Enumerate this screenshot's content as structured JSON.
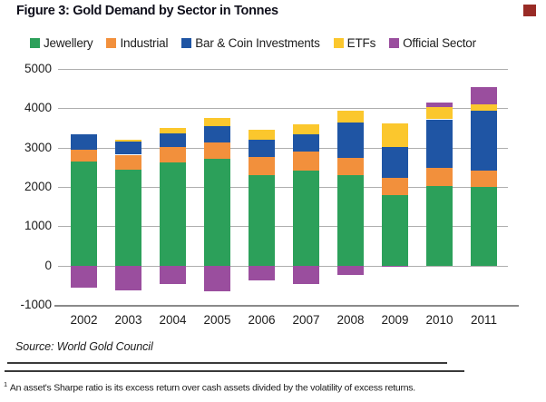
{
  "title": "Figure 3: Gold Demand by Sector in Tonnes",
  "corner_marker": {
    "color": "#992B26"
  },
  "chart_data": {
    "type": "bar",
    "stacked": true,
    "title": "Figure 3: Gold Demand by Sector in Tonnes",
    "categories": [
      "2002",
      "2003",
      "2004",
      "2005",
      "2006",
      "2007",
      "2008",
      "2009",
      "2010",
      "2011"
    ],
    "series": [
      {
        "name": "Jewellery",
        "color": "#2CA05A",
        "values": [
          2650,
          2450,
          2620,
          2710,
          2300,
          2420,
          2300,
          1800,
          2020,
          2000
        ]
      },
      {
        "name": "Industrial",
        "color": "#F2903C",
        "values": [
          300,
          370,
          390,
          430,
          460,
          480,
          450,
          430,
          470,
          420
        ]
      },
      {
        "name": "Bar & Coin Investments",
        "color": "#1F55A4",
        "values": [
          400,
          340,
          360,
          410,
          440,
          440,
          900,
          790,
          1230,
          1510
        ]
      },
      {
        "name": "ETFs",
        "color": "#FBC72D",
        "values": [
          0,
          40,
          140,
          210,
          250,
          260,
          300,
          600,
          320,
          170
        ]
      },
      {
        "name": "Official Sector",
        "color": "#9A4E9E",
        "values": [
          -550,
          -620,
          -480,
          -660,
          -370,
          -480,
          -230,
          -30,
          100,
          450
        ]
      }
    ],
    "ylim": [
      -1000,
      5000
    ],
    "yticks": [
      5000,
      4000,
      3000,
      2000,
      1000,
      0,
      -1000
    ],
    "xlabel": "",
    "ylabel": "",
    "grid": true,
    "legend_position": "top",
    "gridline_color": "#AEAEAE",
    "axisline_color": "#8A8A8A"
  },
  "source": "Source: World Gold Council",
  "footnote": {
    "sup": "1",
    "text": "An asset's Sharpe ratio is its excess return over cash assets divided by the volatility of excess returns."
  }
}
